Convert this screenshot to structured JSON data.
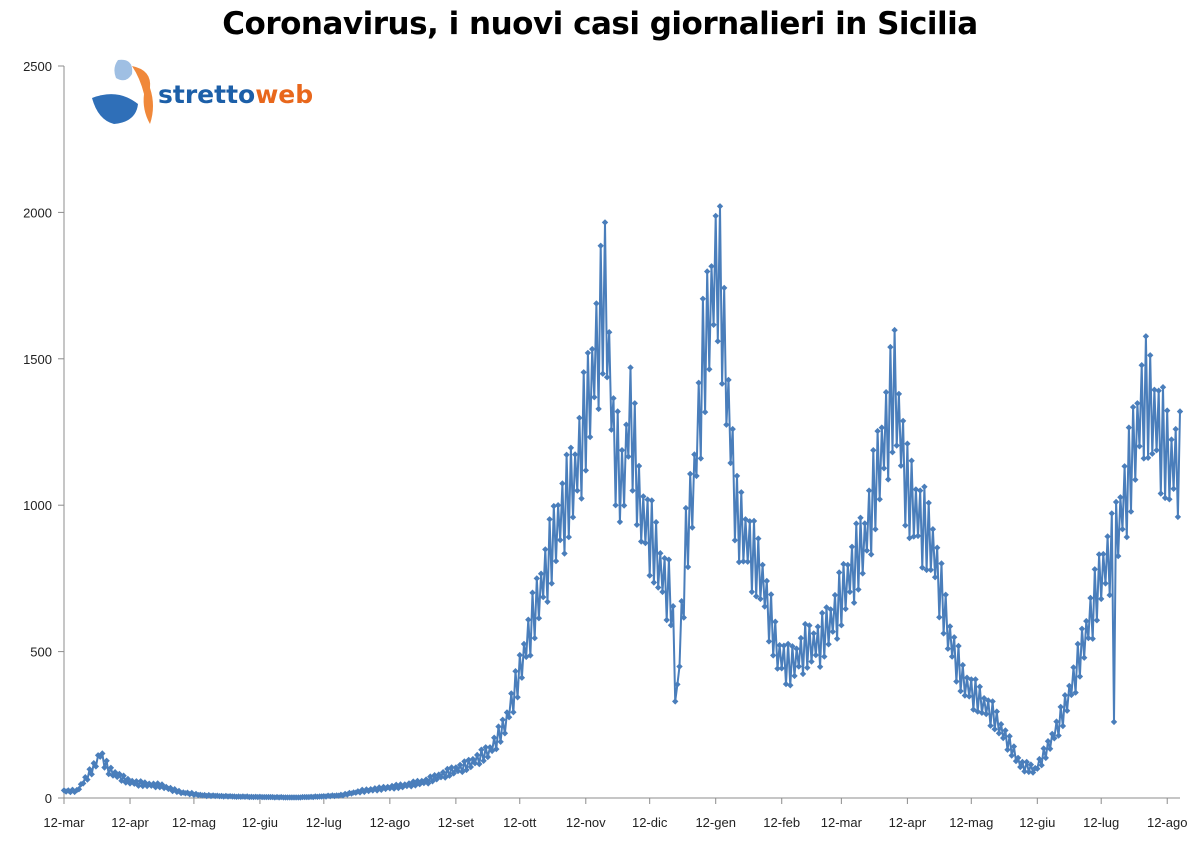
{
  "chart_data": {
    "type": "line",
    "title": "Coronavirus, i nuovi casi giornalieri in Sicilia",
    "xlabel": "",
    "ylabel": "",
    "ylim": [
      0,
      2500
    ],
    "yticks": [
      0,
      500,
      1000,
      1500,
      2000,
      2500
    ],
    "x_tick_labels": [
      "12-mar",
      "12-apr",
      "12-mag",
      "12-giu",
      "12-lug",
      "12-ago",
      "12-set",
      "12-ott",
      "12-nov",
      "12-dic",
      "12-gen",
      "12-feb",
      "12-mar",
      "12-apr",
      "12-mag",
      "12-giu",
      "12-lug",
      "12-ago"
    ],
    "grid": false,
    "legend": "none",
    "line_color": "#4a7ebb",
    "marker": "diamond",
    "series_keyframes": [
      [
        0,
        25
      ],
      [
        6,
        25
      ],
      [
        14,
        110
      ],
      [
        17,
        160
      ],
      [
        21,
        100
      ],
      [
        30,
        60
      ],
      [
        37,
        50
      ],
      [
        45,
        45
      ],
      [
        55,
        20
      ],
      [
        65,
        10
      ],
      [
        80,
        5
      ],
      [
        95,
        3
      ],
      [
        110,
        2
      ],
      [
        120,
        5
      ],
      [
        130,
        10
      ],
      [
        140,
        25
      ],
      [
        150,
        35
      ],
      [
        160,
        45
      ],
      [
        170,
        60
      ],
      [
        180,
        90
      ],
      [
        190,
        120
      ],
      [
        200,
        170
      ],
      [
        207,
        260
      ],
      [
        213,
        420
      ],
      [
        218,
        580
      ],
      [
        225,
        780
      ],
      [
        232,
        980
      ],
      [
        240,
        1150
      ],
      [
        247,
        1450
      ],
      [
        254,
        1820
      ],
      [
        258,
        1300
      ],
      [
        262,
        1100
      ],
      [
        266,
        1400
      ],
      [
        270,
        1050
      ],
      [
        275,
        950
      ],
      [
        280,
        820
      ],
      [
        285,
        720
      ],
      [
        288,
        380
      ],
      [
        292,
        900
      ],
      [
        296,
        1150
      ],
      [
        300,
        1550
      ],
      [
        304,
        1780
      ],
      [
        307,
        1950
      ],
      [
        311,
        1500
      ],
      [
        316,
        1000
      ],
      [
        322,
        900
      ],
      [
        328,
        780
      ],
      [
        335,
        520
      ],
      [
        341,
        470
      ],
      [
        348,
        540
      ],
      [
        355,
        560
      ],
      [
        362,
        660
      ],
      [
        369,
        800
      ],
      [
        376,
        920
      ],
      [
        383,
        1200
      ],
      [
        390,
        1480
      ],
      [
        396,
        1100
      ],
      [
        402,
        1000
      ],
      [
        408,
        900
      ],
      [
        415,
        600
      ],
      [
        422,
        420
      ],
      [
        429,
        360
      ],
      [
        436,
        300
      ],
      [
        442,
        220
      ],
      [
        449,
        120
      ],
      [
        456,
        100
      ],
      [
        462,
        180
      ],
      [
        469,
        300
      ],
      [
        475,
        450
      ],
      [
        481,
        620
      ],
      [
        487,
        800
      ],
      [
        493,
        900
      ],
      [
        500,
        1150
      ],
      [
        507,
        1450
      ],
      [
        513,
        1350
      ],
      [
        519,
        1200
      ]
    ],
    "series_noise": [
      0.02,
      0.12,
      0.05,
      0.2,
      0.1,
      0.18,
      0.08,
      0.15
    ],
    "series_outliers": [
      [
        287,
        330
      ],
      [
        493,
        260
      ]
    ]
  },
  "logo": {
    "part1": "stretto",
    "part2": "web",
    "color1": "#1c5fa8",
    "color2": "#e8671c"
  }
}
